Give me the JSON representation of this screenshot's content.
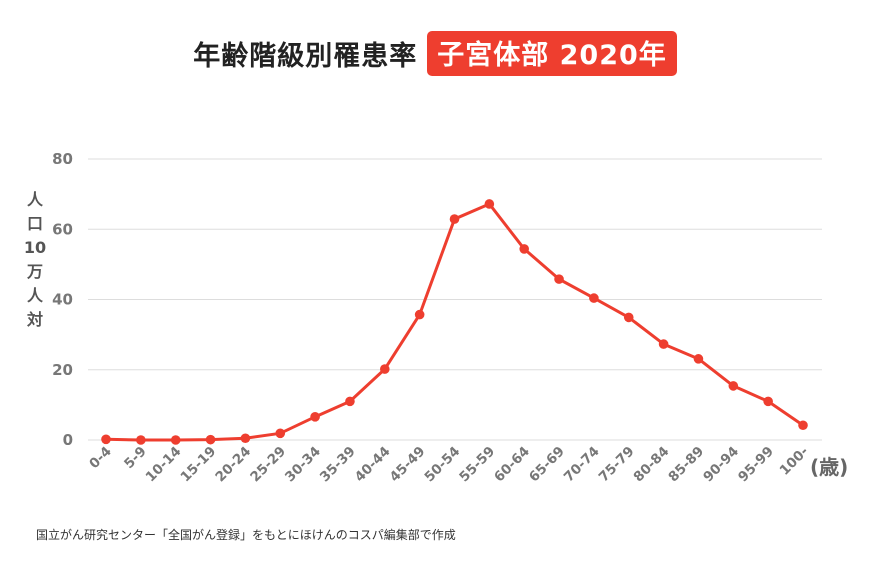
{
  "title": {
    "main": "年齢階級別罹患率",
    "badge": "子宮体部 2020年"
  },
  "source": "国立がん研究センター「全国がん登録」をもとにほけんのコスパ編集部で作成",
  "colors": {
    "accent": "#ee3e2f",
    "grid": "#dddddd",
    "tick": "#777777"
  },
  "chart_data": {
    "type": "line",
    "ylabel": "人口10万人対",
    "ylabel_lines": [
      "人",
      "口",
      "10",
      "万",
      "人",
      "対"
    ],
    "xunit": "(歳)",
    "ylim": [
      0,
      80
    ],
    "yticks": [
      0,
      20,
      40,
      60,
      80
    ],
    "grid": true,
    "categories": [
      "0-4",
      "5-9",
      "10-14",
      "15-19",
      "20-24",
      "25-29",
      "30-34",
      "35-39",
      "40-44",
      "45-49",
      "50-54",
      "55-59",
      "60-64",
      "65-69",
      "70-74",
      "75-79",
      "80-84",
      "85-89",
      "90-94",
      "95-99",
      "100-"
    ],
    "series": [
      {
        "values": [
          0.2,
          0.0,
          0.0,
          0.1,
          0.5,
          1.9,
          6.6,
          11.0,
          20.2,
          35.7,
          62.9,
          67.2,
          54.4,
          45.8,
          40.4,
          34.9,
          27.3,
          23.1,
          15.4,
          11.0,
          4.2
        ]
      }
    ]
  }
}
